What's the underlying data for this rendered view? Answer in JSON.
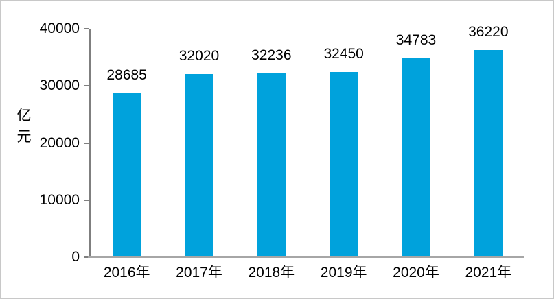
{
  "chart_data": {
    "type": "bar",
    "categories": [
      "2016年",
      "2017年",
      "2018年",
      "2019年",
      "2020年",
      "2021年"
    ],
    "values": [
      28685,
      32020,
      32236,
      32450,
      34783,
      36220
    ],
    "title": "",
    "xlabel": "",
    "ylabel": "亿元",
    "ylabel_lines": [
      "亿",
      "元"
    ],
    "ylim": [
      0,
      40000
    ],
    "yticks": [
      0,
      10000,
      20000,
      30000,
      40000
    ],
    "ytick_labels": [
      "0",
      "10000",
      "20000",
      "30000",
      "40000"
    ],
    "data_labels": [
      "28685",
      "32020",
      "32236",
      "32450",
      "34783",
      "36220"
    ],
    "grid": false,
    "legend_position": "none",
    "bar_color": "#00a2dc",
    "y_axis_color": "#7f7f7f",
    "x_axis_color": "#a6a6a6",
    "text_color": "#000000",
    "frame_border_color": "#c8c8c8"
  }
}
